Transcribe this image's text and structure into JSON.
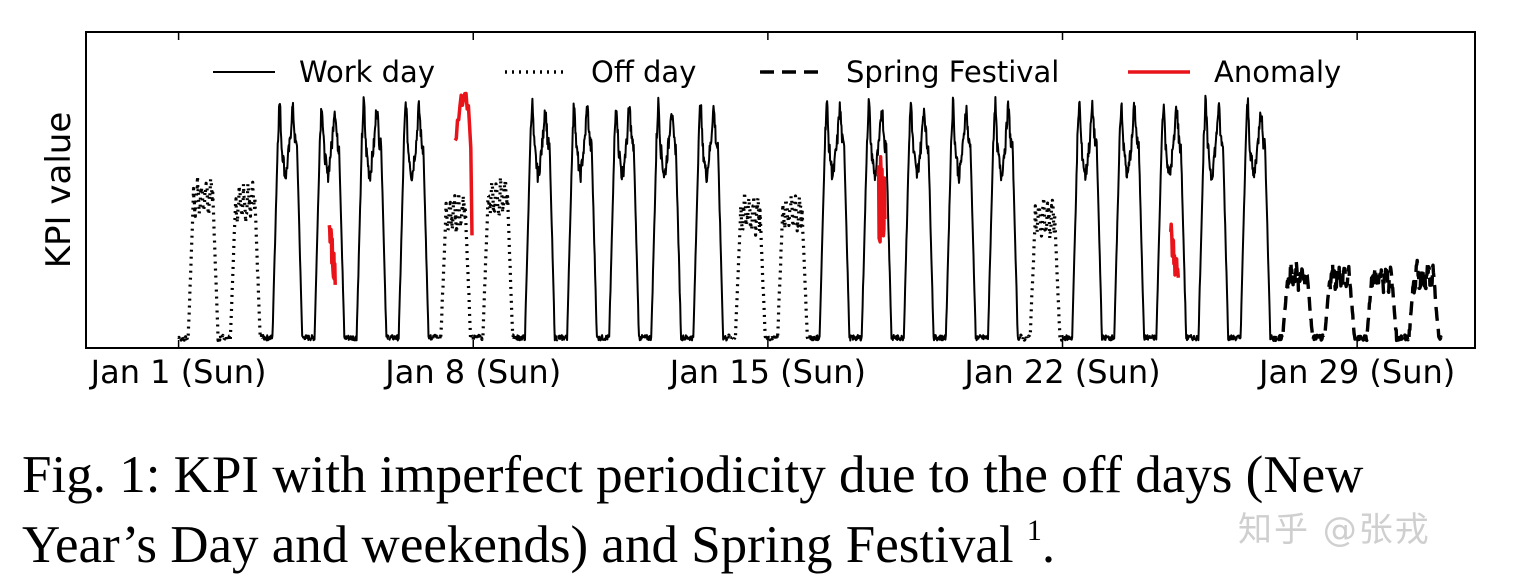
{
  "chart_data": {
    "type": "line",
    "ylabel": "KPI value",
    "x_ticks": [
      "Jan 1 (Sun)",
      "Jan 8 (Sun)",
      "Jan 15 (Sun)",
      "Jan 22 (Sun)",
      "Jan 29 (Sun)"
    ],
    "x_tick_days": [
      0,
      7,
      14,
      21,
      28
    ],
    "xlim": [
      -2.2,
      30.8
    ],
    "ylim": [
      0,
      1
    ],
    "y_ticks_shown": false,
    "legend": {
      "placement": "top",
      "entries": [
        {
          "label": "Work day",
          "style": "solid",
          "color": "#000000"
        },
        {
          "label": "Off day",
          "style": "dotted",
          "color": "#000000"
        },
        {
          "label": "Spring Festival",
          "style": "dashed",
          "color": "#000000"
        },
        {
          "label": "Anomaly",
          "style": "solid",
          "color": "#e8141a"
        }
      ]
    },
    "days": [
      {
        "day": 0,
        "type": "off",
        "level": 0.54
      },
      {
        "day": 1,
        "type": "off",
        "level": 0.52
      },
      {
        "day": 2,
        "type": "work",
        "level": 0.72
      },
      {
        "day": 3,
        "type": "work",
        "level": 0.72
      },
      {
        "day": 4,
        "type": "work",
        "level": 0.72
      },
      {
        "day": 5,
        "type": "work",
        "level": 0.72
      },
      {
        "day": 6,
        "type": "off",
        "level": 0.48
      },
      {
        "day": 7,
        "type": "off",
        "level": 0.54
      },
      {
        "day": 8,
        "type": "work",
        "level": 0.72
      },
      {
        "day": 9,
        "type": "work",
        "level": 0.72
      },
      {
        "day": 10,
        "type": "work",
        "level": 0.72
      },
      {
        "day": 11,
        "type": "work",
        "level": 0.72
      },
      {
        "day": 12,
        "type": "work",
        "level": 0.72
      },
      {
        "day": 13,
        "type": "off",
        "level": 0.48
      },
      {
        "day": 14,
        "type": "off",
        "level": 0.48
      },
      {
        "day": 15,
        "type": "work",
        "level": 0.72
      },
      {
        "day": 16,
        "type": "work",
        "level": 0.72
      },
      {
        "day": 17,
        "type": "work",
        "level": 0.72
      },
      {
        "day": 18,
        "type": "work",
        "level": 0.72
      },
      {
        "day": 19,
        "type": "work",
        "level": 0.72
      },
      {
        "day": 20,
        "type": "off",
        "level": 0.46
      },
      {
        "day": 21,
        "type": "work",
        "level": 0.72
      },
      {
        "day": 22,
        "type": "work",
        "level": 0.72
      },
      {
        "day": 23,
        "type": "work",
        "level": 0.72
      },
      {
        "day": 24,
        "type": "work",
        "level": 0.72
      },
      {
        "day": 25,
        "type": "work",
        "level": 0.72
      },
      {
        "day": 26,
        "type": "festival",
        "level": 0.25
      },
      {
        "day": 27,
        "type": "festival",
        "level": 0.25
      },
      {
        "day": 28,
        "type": "festival",
        "level": 0.25
      },
      {
        "day": 29,
        "type": "festival",
        "level": 0.25
      }
    ],
    "anomalies": [
      {
        "start": 3.58,
        "end": 3.72,
        "kind": "drop",
        "level": 0.42
      },
      {
        "start": 6.57,
        "end": 6.97,
        "kind": "spike",
        "level": 0.72
      },
      {
        "start": 16.62,
        "end": 16.78,
        "kind": "mixed",
        "level": 0.55
      },
      {
        "start": 23.57,
        "end": 23.75,
        "kind": "drop",
        "level": 0.4
      }
    ]
  },
  "caption": {
    "line1": "Fig. 1: KPI with imperfect periodicity due to the off days (New",
    "line2": "Year’s Day and weekends) and Spring Festival",
    "footnote_mark": "1",
    "end": "."
  },
  "watermark": "知乎 @张戎"
}
